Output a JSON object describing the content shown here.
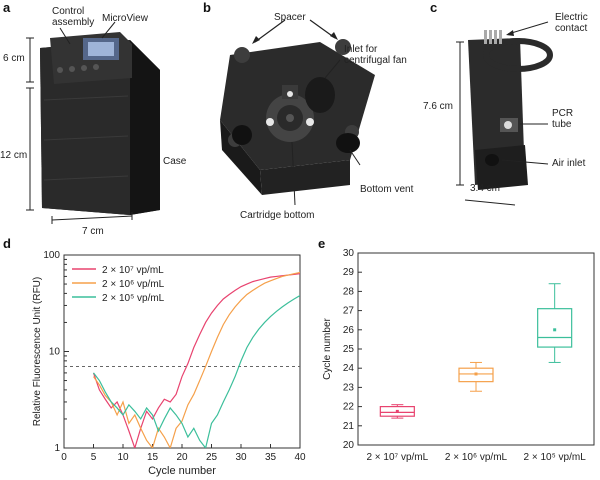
{
  "panels": {
    "a": {
      "letter": "a",
      "labels": {
        "control": "Control\nassembly",
        "microview": "MicroView",
        "case": "Case",
        "height_top": "6 cm",
        "height_main": "12 cm",
        "width": "7 cm"
      }
    },
    "b": {
      "letter": "b",
      "labels": {
        "spacer": "Spacer",
        "inlet": "Inlet for\ncentrifugal fan",
        "bottom_vent": "Bottom vent",
        "cartridge_bottom": "Cartridge bottom"
      }
    },
    "c": {
      "letter": "c",
      "labels": {
        "electric": "Electric\ncontact",
        "height": "7.6 cm",
        "pcr": "PCR\ntube",
        "air_inlet": "Air inlet",
        "width": "3.4 cm"
      }
    },
    "d": {
      "letter": "d"
    },
    "e": {
      "letter": "e"
    }
  },
  "chart_data": [
    {
      "type": "line",
      "xlabel": "Cycle number",
      "ylabel": "Relative Fluorescence Unit (RFU)",
      "yscale": "log",
      "xlim": [
        0,
        40
      ],
      "ylim": [
        1,
        100
      ],
      "xticks": [
        "0",
        "5",
        "10",
        "15",
        "20",
        "25",
        "30",
        "35",
        "40"
      ],
      "yticks": [
        "1",
        "10",
        "100"
      ],
      "threshold": 7,
      "legend_position": "top-left",
      "series": [
        {
          "name": "2 × 10⁷ vp/mL",
          "color": "#e8436f",
          "x": [
            5,
            6,
            7,
            8,
            9,
            10,
            11,
            12,
            13,
            14,
            15,
            16,
            17,
            18,
            19,
            20,
            21,
            22,
            23,
            24,
            25,
            26,
            27,
            28,
            29,
            30,
            31,
            32,
            33,
            34,
            35,
            36,
            37,
            38,
            39,
            40
          ],
          "y": [
            6,
            4,
            3.2,
            2.6,
            3,
            2.2,
            1.5,
            1.0,
            1.6,
            2.4,
            2.0,
            2.6,
            3.2,
            3.0,
            3.6,
            5.5,
            7.5,
            11,
            15,
            20,
            25,
            30,
            35,
            39,
            43,
            47,
            50,
            53,
            55,
            57,
            59,
            60,
            61,
            62,
            63,
            64
          ]
        },
        {
          "name": "2 × 10⁶ vp/mL",
          "color": "#f5a04a",
          "x": [
            5,
            6,
            7,
            8,
            9,
            10,
            11,
            12,
            13,
            14,
            15,
            16,
            17,
            18,
            19,
            20,
            21,
            22,
            23,
            24,
            25,
            26,
            27,
            28,
            29,
            30,
            31,
            32,
            33,
            34,
            35,
            36,
            37,
            38,
            39,
            40
          ],
          "y": [
            5.5,
            4.5,
            3.5,
            3,
            2.2,
            3,
            1.8,
            2.2,
            1.6,
            1.2,
            1.0,
            1.6,
            1.3,
            1.0,
            1.6,
            1.9,
            2.8,
            3.6,
            5,
            7,
            10,
            14,
            19,
            24,
            29,
            34,
            39,
            43,
            47,
            51,
            54,
            57,
            60,
            62,
            64,
            66
          ]
        },
        {
          "name": "2 × 10⁵ vp/mL",
          "color": "#3cbf9b",
          "x": [
            5,
            6,
            7,
            8,
            9,
            10,
            11,
            12,
            13,
            14,
            15,
            16,
            17,
            18,
            19,
            20,
            21,
            22,
            23,
            24,
            25,
            26,
            27,
            28,
            29,
            30,
            31,
            32,
            33,
            34,
            35,
            36,
            37,
            38,
            39,
            40
          ],
          "y": [
            6,
            5,
            3.8,
            3,
            2.6,
            2.2,
            2.8,
            2.4,
            2.0,
            2.6,
            2.2,
            1.5,
            2.0,
            2.6,
            2.2,
            1.8,
            1.3,
            1.6,
            1.2,
            1.0,
            1.8,
            2.2,
            3,
            4,
            5.5,
            8,
            11,
            14,
            17,
            20,
            23,
            26,
            29,
            32,
            35,
            38
          ]
        }
      ]
    },
    {
      "type": "box",
      "ylabel": "Cycle number",
      "ylim": [
        20,
        30
      ],
      "yticks": [
        "20",
        "21",
        "22",
        "23",
        "24",
        "25",
        "26",
        "27",
        "28",
        "29",
        "30"
      ],
      "categories": [
        "2 × 10⁷ vp/mL",
        "2 × 10⁶ vp/mL",
        "2 × 10⁵ vp/mL"
      ],
      "series": [
        {
          "color": "#e8436f",
          "min": 21.4,
          "q1": 21.5,
          "median": 21.7,
          "q3": 22.0,
          "max": 22.1,
          "mean": 21.75
        },
        {
          "color": "#f5a04a",
          "min": 22.8,
          "q1": 23.3,
          "median": 23.7,
          "q3": 24.0,
          "max": 24.3,
          "mean": 23.7
        },
        {
          "color": "#3cbf9b",
          "min": 24.3,
          "q1": 25.1,
          "median": 25.6,
          "q3": 27.1,
          "max": 28.4,
          "mean": 26.0
        }
      ]
    }
  ]
}
